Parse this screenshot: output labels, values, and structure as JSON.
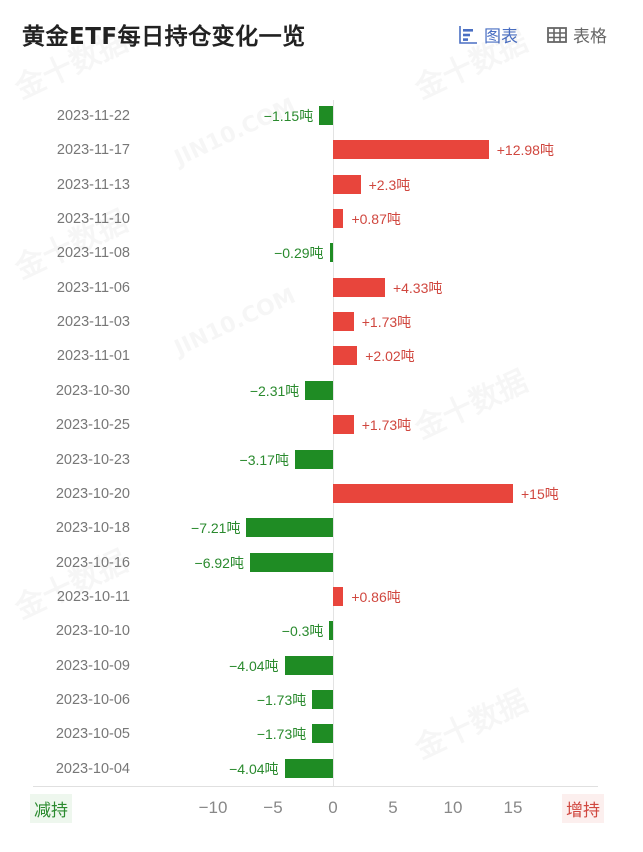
{
  "header": {
    "title": "黄金ETF每日持仓变化一览",
    "view_chart_label": "图表",
    "view_table_label": "表格",
    "active_view": "chart",
    "accent_color": "#4a6fc3"
  },
  "legend": {
    "decrease_label": "减持",
    "increase_label": "增持",
    "decrease_color": "#1f8c24",
    "increase_color": "#e8453c"
  },
  "watermarks": [
    "金十数据",
    "JIN10.COM"
  ],
  "x_ticks": [
    "-10",
    "-5",
    "0",
    "5",
    "10",
    "15"
  ],
  "rows": [
    {
      "date": "2023-11-22",
      "value": -1.15,
      "label": "-1.15吨"
    },
    {
      "date": "2023-11-17",
      "value": 12.98,
      "label": "+12.98吨"
    },
    {
      "date": "2023-11-13",
      "value": 2.3,
      "label": "+2.3吨"
    },
    {
      "date": "2023-11-10",
      "value": 0.87,
      "label": "+0.87吨"
    },
    {
      "date": "2023-11-08",
      "value": -0.29,
      "label": "-0.29吨"
    },
    {
      "date": "2023-11-06",
      "value": 4.33,
      "label": "+4.33吨"
    },
    {
      "date": "2023-11-03",
      "value": 1.73,
      "label": "+1.73吨"
    },
    {
      "date": "2023-11-01",
      "value": 2.02,
      "label": "+2.02吨"
    },
    {
      "date": "2023-10-30",
      "value": -2.31,
      "label": "-2.31吨"
    },
    {
      "date": "2023-10-25",
      "value": 1.73,
      "label": "+1.73吨"
    },
    {
      "date": "2023-10-23",
      "value": -3.17,
      "label": "-3.17吨"
    },
    {
      "date": "2023-10-20",
      "value": 15,
      "label": "+15吨"
    },
    {
      "date": "2023-10-18",
      "value": -7.21,
      "label": "-7.21吨"
    },
    {
      "date": "2023-10-16",
      "value": -6.92,
      "label": "-6.92吨"
    },
    {
      "date": "2023-10-11",
      "value": 0.86,
      "label": "+0.86吨"
    },
    {
      "date": "2023-10-10",
      "value": -0.3,
      "label": "-0.3吨"
    },
    {
      "date": "2023-10-09",
      "value": -4.04,
      "label": "-4.04吨"
    },
    {
      "date": "2023-10-06",
      "value": -1.73,
      "label": "-1.73吨"
    },
    {
      "date": "2023-10-05",
      "value": -1.73,
      "label": "-1.73吨"
    },
    {
      "date": "2023-10-04",
      "value": -4.04,
      "label": "-4.04吨"
    }
  ],
  "chart_data": {
    "type": "bar",
    "orientation": "horizontal",
    "title": "黄金ETF每日持仓变化一览",
    "xlabel": "",
    "ylabel": "",
    "unit": "吨",
    "categories": [
      "2023-11-22",
      "2023-11-17",
      "2023-11-13",
      "2023-11-10",
      "2023-11-08",
      "2023-11-06",
      "2023-11-03",
      "2023-11-01",
      "2023-10-30",
      "2023-10-25",
      "2023-10-23",
      "2023-10-20",
      "2023-10-18",
      "2023-10-16",
      "2023-10-11",
      "2023-10-10",
      "2023-10-09",
      "2023-10-06",
      "2023-10-05",
      "2023-10-04"
    ],
    "values": [
      -1.15,
      12.98,
      2.3,
      0.87,
      -0.29,
      4.33,
      1.73,
      2.02,
      -2.31,
      1.73,
      -3.17,
      15,
      -7.21,
      -6.92,
      0.86,
      -0.3,
      -4.04,
      -1.73,
      -1.73,
      -4.04
    ],
    "x_ticks": [
      -10,
      -5,
      0,
      5,
      10,
      15
    ],
    "xlim": [
      -13,
      20
    ],
    "grid": false,
    "legend": {
      "negative": "减持",
      "positive": "增持",
      "position": "bottom"
    },
    "colors": {
      "positive": "#e8453c",
      "negative": "#1f8c24"
    }
  }
}
